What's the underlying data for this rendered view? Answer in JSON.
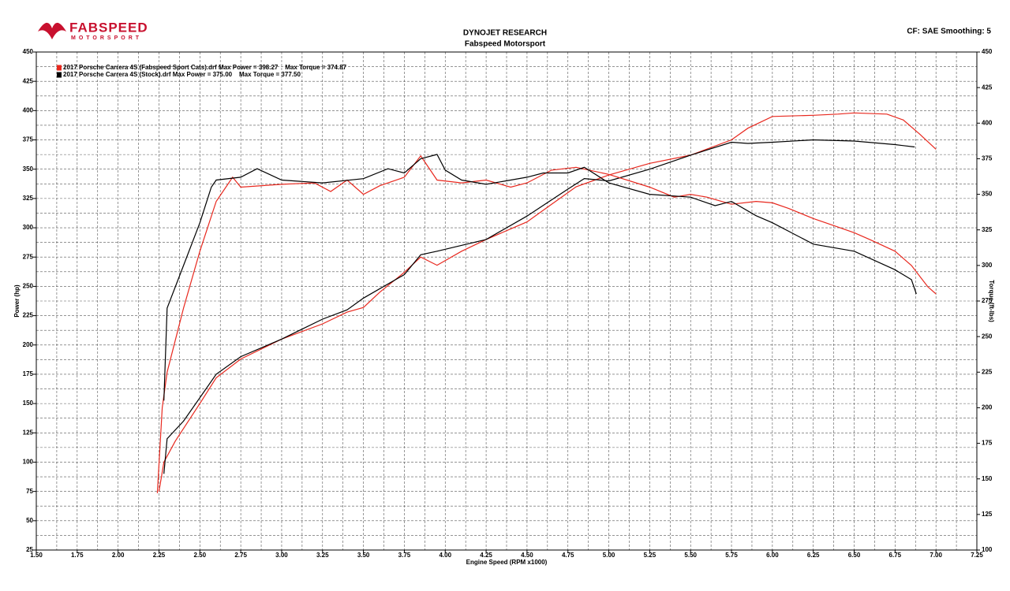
{
  "chart_data": {
    "type": "line",
    "brand": "FABSPEED",
    "brand_sub": "MOTORSPORT",
    "title": "DYNOJET RESEARCH",
    "subtitle": "Fabspeed Motorsport",
    "corner_note": "CF: SAE  Smoothing: 5",
    "x_label": "Engine Speed (RPM x1000)",
    "y_label": "Power (hp)",
    "y2_label": "Torque (ft-lbs)",
    "grid": true,
    "xlim": [
      1.5,
      7.25
    ],
    "xticks": [
      {
        "value": 1.5,
        "label": "1.50"
      },
      {
        "value": 1.75,
        "label": "1.75"
      },
      {
        "value": 2,
        "label": "2.00"
      },
      {
        "value": 2.25,
        "label": "2.25"
      },
      {
        "value": 2.5,
        "label": "2.50"
      },
      {
        "value": 2.75,
        "label": "2.75"
      },
      {
        "value": 3,
        "label": "3.00"
      },
      {
        "value": 3.25,
        "label": "3.25"
      },
      {
        "value": 3.5,
        "label": "3.50"
      },
      {
        "value": 3.75,
        "label": "3.75"
      },
      {
        "value": 4,
        "label": "4.00"
      },
      {
        "value": 4.25,
        "label": "4.25"
      },
      {
        "value": 4.5,
        "label": "4.50"
      },
      {
        "value": 4.75,
        "label": "4.75"
      },
      {
        "value": 5,
        "label": "5.00"
      },
      {
        "value": 5.25,
        "label": "5.25"
      },
      {
        "value": 5.5,
        "label": "5.50"
      },
      {
        "value": 5.75,
        "label": "5.75"
      },
      {
        "value": 6,
        "label": "6.00"
      },
      {
        "value": 6.25,
        "label": "6.25"
      },
      {
        "value": 6.5,
        "label": "6.50"
      },
      {
        "value": 6.75,
        "label": "6.75"
      },
      {
        "value": 7,
        "label": "7.00"
      },
      {
        "value": 7.25,
        "label": "7.25"
      }
    ],
    "ylim": [
      25,
      450
    ],
    "yticks": [
      25,
      50,
      75,
      100,
      125,
      150,
      175,
      200,
      225,
      250,
      275,
      300,
      325,
      350,
      375,
      400,
      425,
      450
    ],
    "y2lim": [
      100,
      450
    ],
    "y2ticks": [
      100,
      125,
      150,
      175,
      200,
      225,
      250,
      275,
      300,
      325,
      350,
      375,
      400,
      425,
      450
    ],
    "series": [
      {
        "name": "2017 Porsche Carrera 4S (Fabspeed Sport Cats).drf Max Power = 398.27    Max Torque = 374.87",
        "color": "#e8281e",
        "x": [
          2.25,
          2.28,
          2.35,
          2.5,
          2.6,
          2.75,
          3.0,
          3.25,
          3.4,
          3.5,
          3.6,
          3.75,
          3.85,
          3.95,
          4.1,
          4.25,
          4.5,
          4.65,
          4.8,
          5.0,
          5.25,
          5.5,
          5.75,
          5.85,
          6.0,
          6.25,
          6.4,
          6.5,
          6.7,
          6.8,
          6.9,
          7.0
        ],
        "values": [
          75,
          100,
          118,
          150,
          172,
          188,
          205,
          218,
          228,
          232,
          245,
          262,
          275,
          268,
          280,
          290,
          305,
          320,
          335,
          345,
          355,
          362,
          375,
          385,
          395,
          396,
          397,
          398,
          397,
          392,
          380,
          367
        ]
      },
      {
        "name": "2017 Porsche Carrera 4S (Stock).drf Max Power = 375.00    Max Torque = 377.50",
        "color": "#000000",
        "x": [
          2.28,
          2.3,
          2.4,
          2.5,
          2.6,
          2.75,
          3.0,
          3.25,
          3.4,
          3.5,
          3.75,
          3.85,
          3.95,
          4.25,
          4.5,
          4.75,
          4.85,
          5.0,
          5.25,
          5.5,
          5.75,
          5.85,
          6.0,
          6.25,
          6.5,
          6.75,
          6.87
        ],
        "values": [
          90,
          120,
          135,
          155,
          175,
          190,
          205,
          222,
          230,
          240,
          260,
          277,
          280,
          290,
          310,
          333,
          342,
          340,
          350,
          362,
          373,
          372,
          373,
          375,
          374,
          371,
          369
        ]
      },
      {
        "color": "#e8281e",
        "axis": "y2",
        "x": [
          2.24,
          2.27,
          2.3,
          2.4,
          2.5,
          2.6,
          2.7,
          2.75,
          3.0,
          3.2,
          3.3,
          3.4,
          3.5,
          3.6,
          3.75,
          3.85,
          3.95,
          4.1,
          4.25,
          4.4,
          4.5,
          4.65,
          4.8,
          5.0,
          5.25,
          5.4,
          5.5,
          5.6,
          5.75,
          5.9,
          6.0,
          6.1,
          6.25,
          6.4,
          6.5,
          6.6,
          6.75,
          6.85,
          6.95,
          7.0
        ],
        "values": [
          140,
          200,
          225,
          270,
          310,
          345,
          362,
          355,
          357,
          358,
          352,
          360,
          350,
          356,
          362,
          377,
          360,
          358,
          360,
          355,
          358,
          367,
          369,
          364,
          355,
          348,
          350,
          348,
          343,
          345,
          344,
          340,
          333,
          327,
          323,
          318,
          310,
          300,
          285,
          280
        ]
      },
      {
        "color": "#000000",
        "axis": "y2",
        "x": [
          2.28,
          2.3,
          2.4,
          2.5,
          2.57,
          2.6,
          2.75,
          2.85,
          3.0,
          3.25,
          3.5,
          3.65,
          3.75,
          3.85,
          3.95,
          4.0,
          4.1,
          4.25,
          4.5,
          4.6,
          4.75,
          4.85,
          5.0,
          5.25,
          5.5,
          5.65,
          5.75,
          5.9,
          6.0,
          6.25,
          6.5,
          6.75,
          6.85,
          6.88
        ],
        "values": [
          205,
          270,
          300,
          330,
          355,
          360,
          362,
          368,
          360,
          358,
          361,
          368,
          365,
          375,
          378,
          367,
          360,
          357,
          362,
          365,
          365,
          369,
          358,
          350,
          348,
          342,
          345,
          335,
          330,
          315,
          310,
          297,
          290,
          280
        ]
      }
    ]
  }
}
